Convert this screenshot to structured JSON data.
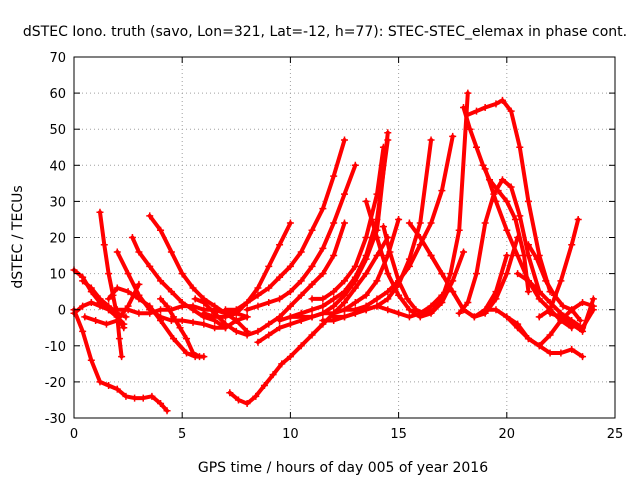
{
  "chart_data": {
    "type": "scatter",
    "title": "dSTEC Iono. truth (savo, Lon=321, Lat=-12, h=77): STEC-STEC_elemax in phase cont.",
    "xlabel": "GPS time / hours of day 005 of year 2016",
    "ylabel": "dSTEC  / TECUs",
    "xlim": [
      0,
      25
    ],
    "ylim": [
      -30,
      70
    ],
    "xticks": [
      0,
      5,
      10,
      15,
      20,
      25
    ],
    "yticks": [
      -30,
      -20,
      -10,
      0,
      10,
      20,
      30,
      40,
      50,
      60,
      70
    ],
    "grid": true,
    "legend": "none",
    "color": "#ff0000",
    "series": [
      {
        "x": [
          0.0,
          0.4,
          0.8,
          1.2,
          1.6,
          2.0,
          2.4,
          2.8,
          3.2,
          3.6,
          4.0,
          4.3
        ],
        "y": [
          0,
          -6,
          -14,
          -20,
          -21,
          -22,
          -24,
          -24.5,
          -24.5,
          -24,
          -26,
          -28
        ]
      },
      {
        "x": [
          0.0,
          0.4,
          0.8,
          1.2,
          1.6,
          2.0,
          2.3
        ],
        "y": [
          11,
          9,
          5,
          2,
          0,
          -2,
          -4
        ]
      },
      {
        "x": [
          0.4,
          0.8,
          1.2,
          1.6,
          2.0,
          2.4
        ],
        "y": [
          8,
          6,
          3,
          1,
          -1,
          -2
        ]
      },
      {
        "x": [
          0.0,
          0.4,
          0.8,
          1.2,
          1.6,
          2.0,
          2.3
        ],
        "y": [
          -1,
          1,
          2,
          1,
          0,
          -2,
          -5
        ]
      },
      {
        "x": [
          1.2,
          1.4,
          1.6,
          1.8,
          2.0,
          2.1,
          2.2
        ],
        "y": [
          27,
          18,
          10,
          4,
          -2,
          -8,
          -13
        ]
      },
      {
        "x": [
          0.5,
          1.0,
          1.5,
          2.0,
          2.5,
          3.0
        ],
        "y": [
          -2,
          -3,
          -4,
          -3,
          1,
          7
        ]
      },
      {
        "x": [
          1.6,
          2.0,
          2.5,
          3.0,
          3.5,
          4.0,
          4.6,
          5.2,
          5.6,
          6.0
        ],
        "y": [
          3,
          6,
          5,
          3,
          1,
          -3,
          -8,
          -12,
          -13,
          -13
        ]
      },
      {
        "x": [
          2.0,
          2.5,
          3.0,
          3.5,
          4.0,
          4.5,
          5.0,
          5.5,
          6.0,
          6.5,
          7.0,
          7.5,
          8.0
        ],
        "y": [
          16,
          10,
          4,
          0,
          -2,
          -3,
          -3,
          -3.5,
          -4,
          -5,
          -5,
          -3,
          -2
        ]
      },
      {
        "x": [
          2.7,
          3.0,
          3.5,
          4.0,
          4.5,
          5.0,
          5.5,
          6.0,
          6.5,
          7.0
        ],
        "y": [
          20,
          16,
          12,
          8,
          5,
          2,
          0,
          -2,
          -3,
          -5
        ]
      },
      {
        "x": [
          3.5,
          4.0,
          4.5,
          5.0,
          5.5,
          6.0,
          6.5,
          7.0,
          7.5,
          8.0
        ],
        "y": [
          26,
          22,
          16,
          10,
          6,
          3,
          1,
          -1,
          -3,
          -6
        ]
      },
      {
        "x": [
          2.0,
          2.5,
          3.0,
          3.5,
          4.0,
          4.5,
          5.0,
          5.5,
          6.0,
          6.5,
          7.0,
          7.5,
          8.0
        ],
        "y": [
          0,
          0,
          -1,
          -1,
          0,
          0,
          1,
          1,
          0,
          0,
          -1,
          -1,
          -2
        ]
      },
      {
        "x": [
          4.0,
          4.3,
          4.6,
          4.9,
          5.2,
          5.5,
          5.8
        ],
        "y": [
          3,
          1,
          -2,
          -5,
          -8,
          -12,
          -13
        ]
      },
      {
        "x": [
          5.6,
          6.0,
          6.5,
          7.0,
          7.5,
          8.0,
          8.5,
          9.0,
          9.5,
          10.0,
          10.5,
          11.0,
          11.5,
          12.0,
          12.5
        ],
        "y": [
          3,
          2,
          -1,
          -4,
          -6,
          -7,
          -6,
          -4,
          -2,
          1,
          4,
          7,
          10,
          15,
          24
        ]
      },
      {
        "x": [
          7.2,
          7.6,
          8.0,
          8.4,
          8.8,
          9.2,
          9.6,
          10.0,
          10.5,
          11.0,
          11.5,
          12.0,
          12.5,
          13.0,
          13.5,
          14.0,
          14.5
        ],
        "y": [
          -23,
          -25,
          -26,
          -24,
          -21,
          -18,
          -15,
          -13,
          -10,
          -7,
          -4,
          -1,
          2,
          6,
          10,
          15,
          20
        ]
      },
      {
        "x": [
          6.0,
          6.5,
          7.0,
          7.5,
          8.0,
          8.5,
          9.0,
          9.5,
          10.0
        ],
        "y": [
          -1,
          -2,
          -2,
          -1,
          2,
          6,
          12,
          18,
          24
        ]
      },
      {
        "x": [
          7.0,
          7.5,
          8.0,
          8.5,
          9.0,
          9.5,
          10.0,
          10.5,
          11.0,
          11.5,
          12.0,
          12.5
        ],
        "y": [
          0,
          0,
          2,
          4,
          6,
          9,
          12,
          16,
          22,
          28,
          37,
          47
        ]
      },
      {
        "x": [
          8.0,
          8.5,
          9.0,
          9.5,
          10.0,
          10.5,
          11.0,
          11.5,
          12.0,
          12.5,
          13.0
        ],
        "y": [
          0,
          1,
          2,
          3,
          5,
          8,
          12,
          17,
          24,
          32,
          40
        ]
      },
      {
        "x": [
          8.5,
          9.0,
          9.5,
          10.0,
          10.5,
          11.0,
          11.5,
          12.0,
          12.5,
          13.0,
          13.5,
          14.0,
          14.5
        ],
        "y": [
          -9,
          -7,
          -5,
          -4,
          -3,
          -2,
          -1,
          1,
          4,
          8,
          14,
          22,
          49
        ]
      },
      {
        "x": [
          9.5,
          10.0,
          10.5,
          11.0,
          11.5,
          12.0,
          12.5,
          13.0,
          13.5,
          14.0,
          14.5
        ],
        "y": [
          -3,
          -2,
          -1,
          0,
          1,
          3,
          5,
          9,
          15,
          25,
          47
        ]
      },
      {
        "x": [
          11.0,
          11.5,
          12.0,
          12.5,
          13.0,
          13.5,
          14.0,
          14.3
        ],
        "y": [
          3,
          3,
          5,
          8,
          12,
          20,
          32,
          45
        ]
      },
      {
        "x": [
          10.0,
          10.5,
          11.0,
          11.5,
          12.0,
          12.5,
          13.0,
          13.5,
          14.0,
          14.5,
          15.0
        ],
        "y": [
          -2,
          -2,
          -2,
          -1,
          -1,
          0,
          2,
          4,
          8,
          15,
          25
        ]
      },
      {
        "x": [
          11.5,
          12.0,
          12.5,
          13.0,
          13.5,
          14.0,
          14.5,
          15.0,
          15.5,
          16.0,
          16.5
        ],
        "y": [
          -3,
          -3,
          -2,
          -1,
          0,
          1,
          3,
          7,
          14,
          24,
          47
        ]
      },
      {
        "x": [
          12.5,
          13.0,
          13.5,
          14.0,
          14.5,
          15.0,
          15.5,
          16.0,
          16.5,
          17.0,
          17.5
        ],
        "y": [
          0,
          0,
          1,
          3,
          5,
          8,
          12,
          18,
          24,
          33,
          48
        ]
      },
      {
        "x": [
          12.0,
          12.5,
          13.0,
          13.5,
          14.0,
          14.5,
          15.0,
          15.5,
          16.0,
          16.5,
          17.0
        ],
        "y": [
          -2,
          -2,
          -1,
          0,
          1,
          0,
          -1,
          -2,
          -1,
          1,
          4
        ]
      },
      {
        "x": [
          13.5,
          14.0,
          14.5,
          15.0,
          15.5,
          16.0,
          16.5,
          17.0,
          17.5,
          18.0
        ],
        "y": [
          30,
          20,
          10,
          4,
          0,
          -2,
          -1,
          2,
          8,
          16
        ]
      },
      {
        "x": [
          14.3,
          14.6,
          15.0,
          15.4,
          15.8,
          16.2,
          16.6,
          17.0,
          17.4,
          17.8,
          18.2
        ],
        "y": [
          23,
          16,
          8,
          3,
          0,
          -1,
          0,
          3,
          10,
          22,
          60
        ]
      },
      {
        "x": [
          15.5,
          16.0,
          16.5,
          17.0,
          17.5,
          18.0,
          18.5,
          19.0,
          19.5,
          20.0
        ],
        "y": [
          24,
          20,
          15,
          10,
          5,
          0,
          -2,
          0,
          5,
          15
        ]
      },
      {
        "x": [
          16.5,
          17.0,
          17.5,
          18.0,
          18.5,
          19.0,
          19.5,
          20.0,
          20.5
        ],
        "y": [
          15,
          10,
          5,
          0,
          -2,
          -1,
          3,
          10,
          20
        ]
      },
      {
        "x": [
          18.0,
          18.3,
          18.6,
          18.9,
          19.2,
          19.6,
          20.0,
          20.4,
          20.8,
          21.0
        ],
        "y": [
          56,
          50,
          45,
          40,
          36,
          33,
          30,
          25,
          15,
          5
        ]
      },
      {
        "x": [
          18.2,
          18.6,
          19.0,
          19.5,
          19.8,
          20.2,
          20.6,
          21.0,
          21.5,
          22.0
        ],
        "y": [
          54,
          55,
          56,
          57,
          58,
          55,
          45,
          30,
          15,
          5
        ]
      },
      {
        "x": [
          17.8,
          18.2,
          18.6,
          19.0,
          19.4,
          19.8,
          20.2,
          20.6,
          21.0,
          21.5
        ],
        "y": [
          -1,
          2,
          10,
          24,
          32,
          36,
          34,
          26,
          15,
          5
        ]
      },
      {
        "x": [
          19.0,
          19.5,
          20.0,
          20.5,
          21.0,
          21.5,
          22.0,
          22.5,
          23.0
        ],
        "y": [
          39,
          30,
          22,
          15,
          8,
          3,
          0,
          -3,
          -5
        ]
      },
      {
        "x": [
          19.0,
          19.5,
          20.0,
          20.5,
          21.0,
          21.5,
          22.0,
          22.5,
          23.0,
          23.5
        ],
        "y": [
          0,
          0,
          -2,
          -5,
          -8,
          -10,
          -12,
          -12,
          -11,
          -13
        ]
      },
      {
        "x": [
          20.0,
          20.5,
          21.0,
          21.5,
          22.0,
          22.5,
          23.0,
          23.5,
          24.0
        ],
        "y": [
          -2,
          -4,
          -8,
          -10,
          -7,
          -3,
          0,
          2,
          1
        ]
      },
      {
        "x": [
          21.0,
          21.4,
          21.8,
          22.2,
          22.6,
          23.0,
          23.4
        ],
        "y": [
          18,
          14,
          8,
          4,
          1,
          0,
          -3
        ]
      },
      {
        "x": [
          21.5,
          22.0,
          22.5,
          23.0,
          23.3
        ],
        "y": [
          -2,
          0,
          8,
          18,
          25
        ]
      },
      {
        "x": [
          20.5,
          21.0,
          21.5,
          22.0,
          22.5,
          23.0,
          23.5,
          24.0
        ],
        "y": [
          10,
          8,
          5,
          2,
          -1,
          -3,
          -5,
          0
        ]
      },
      {
        "x": [
          22.0,
          22.5,
          23.0,
          23.5,
          24.0
        ],
        "y": [
          -1,
          -2,
          -4,
          -6,
          3
        ]
      }
    ]
  }
}
